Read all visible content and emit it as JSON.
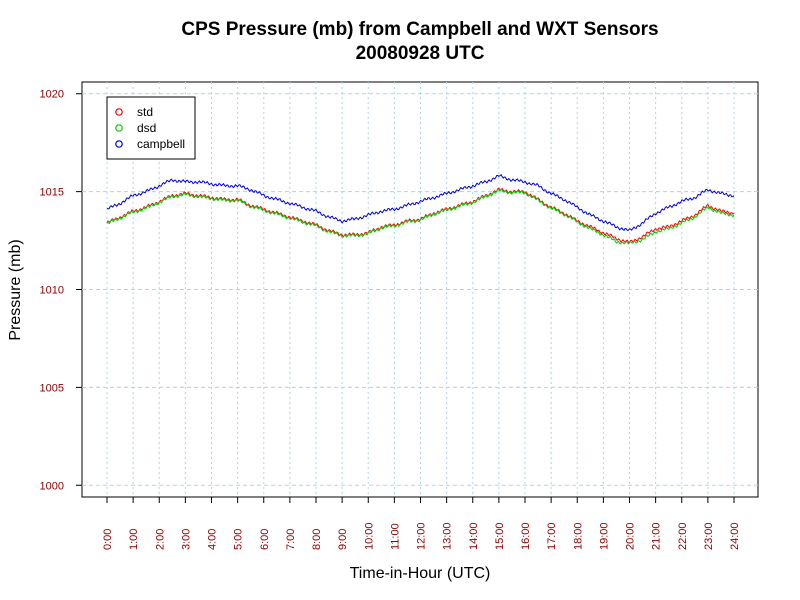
{
  "chart_data": {
    "type": "line",
    "title": "CPS Pressure (mb) from Campbell and WXT Sensors",
    "subtitle": "20080928  UTC",
    "xlabel": "Time-in-Hour (UTC)",
    "ylabel": "Pressure (mb)",
    "xlim": [
      0,
      24
    ],
    "ylim": [
      999.4,
      1020.6
    ],
    "grid": true,
    "legend_position": "top-left",
    "x_ticks": [
      "0:00",
      "1:00",
      "2:00",
      "3:00",
      "4:00",
      "5:00",
      "6:00",
      "7:00",
      "8:00",
      "9:00",
      "10:00",
      "11:00",
      "12:00",
      "13:00",
      "14:00",
      "15:00",
      "16:00",
      "17:00",
      "18:00",
      "19:00",
      "20:00",
      "21:00",
      "22:00",
      "23:00",
      "24:00"
    ],
    "y_ticks": [
      "1000",
      "1005",
      "1010",
      "1015",
      "1020"
    ],
    "x": [
      0,
      0.5,
      1,
      1.5,
      2,
      2.5,
      3,
      3.5,
      4,
      4.5,
      5,
      5.5,
      6,
      6.5,
      7,
      7.5,
      8,
      8.5,
      9,
      9.5,
      10,
      10.5,
      11,
      11.5,
      12,
      12.5,
      13,
      13.5,
      14,
      14.5,
      15,
      15.5,
      16,
      16.5,
      17,
      17.5,
      18,
      18.5,
      19,
      19.5,
      20,
      20.5,
      21,
      21.5,
      22,
      22.5,
      23,
      23.5,
      24
    ],
    "series": [
      {
        "name": "std",
        "color": "#ff0000",
        "values": [
          1013.4,
          1013.7,
          1014.0,
          1014.2,
          1014.5,
          1014.8,
          1014.9,
          1014.8,
          1014.7,
          1014.6,
          1014.6,
          1014.3,
          1014.1,
          1013.9,
          1013.7,
          1013.5,
          1013.3,
          1013.0,
          1012.8,
          1012.8,
          1012.9,
          1013.2,
          1013.3,
          1013.5,
          1013.6,
          1013.9,
          1014.1,
          1014.3,
          1014.5,
          1014.8,
          1015.1,
          1015.0,
          1015.0,
          1014.6,
          1014.2,
          1013.9,
          1013.5,
          1013.2,
          1012.9,
          1012.6,
          1012.4,
          1012.7,
          1013.1,
          1013.2,
          1013.5,
          1013.8,
          1014.3,
          1014.0,
          1013.9
        ]
      },
      {
        "name": "dsd",
        "color": "#00cc00",
        "values": [
          1013.35,
          1013.65,
          1013.95,
          1014.15,
          1014.45,
          1014.75,
          1014.85,
          1014.75,
          1014.65,
          1014.55,
          1014.55,
          1014.25,
          1014.05,
          1013.85,
          1013.65,
          1013.45,
          1013.25,
          1012.95,
          1012.75,
          1012.75,
          1012.85,
          1013.15,
          1013.25,
          1013.45,
          1013.55,
          1013.85,
          1014.05,
          1014.25,
          1014.45,
          1014.75,
          1015.05,
          1014.95,
          1014.95,
          1014.55,
          1014.15,
          1013.85,
          1013.45,
          1013.1,
          1012.8,
          1012.45,
          1012.35,
          1012.55,
          1012.95,
          1013.1,
          1013.4,
          1013.7,
          1014.2,
          1013.9,
          1013.8
        ]
      },
      {
        "name": "campbell",
        "color": "#0000dd",
        "values": [
          1014.1,
          1014.4,
          1014.8,
          1015.0,
          1015.3,
          1015.6,
          1015.5,
          1015.5,
          1015.4,
          1015.3,
          1015.3,
          1015.1,
          1014.8,
          1014.6,
          1014.4,
          1014.2,
          1014.0,
          1013.7,
          1013.5,
          1013.6,
          1013.8,
          1014.0,
          1014.1,
          1014.3,
          1014.5,
          1014.7,
          1014.9,
          1015.1,
          1015.3,
          1015.5,
          1015.8,
          1015.6,
          1015.5,
          1015.3,
          1014.9,
          1014.6,
          1014.2,
          1013.8,
          1013.5,
          1013.2,
          1013.0,
          1013.4,
          1013.9,
          1014.2,
          1014.5,
          1014.7,
          1015.1,
          1014.9,
          1014.8
        ]
      }
    ]
  }
}
